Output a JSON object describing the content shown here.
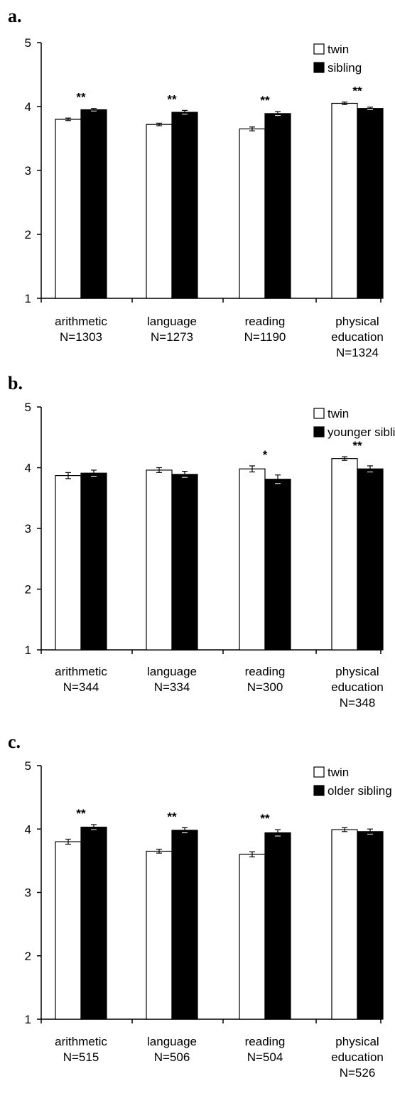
{
  "chart_data": [
    {
      "panel_label": "a.",
      "type": "bar",
      "categories": [
        "arithmetic",
        "language",
        "reading",
        "physical education"
      ],
      "category_labels": [
        [
          "arithmetic",
          "N=1303"
        ],
        [
          "language",
          "N=1273"
        ],
        [
          "reading",
          "N=1190"
        ],
        [
          "physical",
          "education",
          "N=1324"
        ]
      ],
      "series": [
        {
          "name": "twin",
          "color": "#ffffff",
          "values": [
            3.8,
            3.72,
            3.65,
            4.05
          ],
          "errors": [
            0.02,
            0.02,
            0.03,
            0.02
          ]
        },
        {
          "name": "sibling",
          "color": "#000000",
          "values": [
            3.95,
            3.91,
            3.89,
            3.97
          ],
          "errors": [
            0.02,
            0.03,
            0.03,
            0.02
          ]
        }
      ],
      "significance": [
        "**",
        "**",
        "**",
        "**"
      ],
      "yticks": [
        "1",
        "2",
        "3",
        "4",
        "5"
      ],
      "ylim": [
        1,
        5
      ],
      "legend_position": "top-right",
      "grid": false
    },
    {
      "panel_label": "b.",
      "type": "bar",
      "categories": [
        "arithmetic",
        "language",
        "reading",
        "physical education"
      ],
      "category_labels": [
        [
          "arithmetic",
          "N=344"
        ],
        [
          "language",
          "N=334"
        ],
        [
          "reading",
          "N=300"
        ],
        [
          "physical",
          "education",
          "N=348"
        ]
      ],
      "series": [
        {
          "name": "twin",
          "color": "#ffffff",
          "values": [
            3.87,
            3.96,
            3.98,
            4.15
          ],
          "errors": [
            0.05,
            0.04,
            0.05,
            0.03
          ]
        },
        {
          "name": "younger sibling",
          "color": "#000000",
          "values": [
            3.91,
            3.89,
            3.81,
            3.98
          ],
          "errors": [
            0.05,
            0.05,
            0.07,
            0.05
          ]
        }
      ],
      "significance": [
        "",
        "",
        "*",
        "**"
      ],
      "yticks": [
        "1",
        "2",
        "3",
        "4",
        "5"
      ],
      "ylim": [
        1,
        5
      ],
      "legend_position": "top-right",
      "grid": false
    },
    {
      "panel_label": "c.",
      "type": "bar",
      "categories": [
        "arithmetic",
        "language",
        "reading",
        "physical education"
      ],
      "category_labels": [
        [
          "arithmetic",
          "N=515"
        ],
        [
          "language",
          "N=506"
        ],
        [
          "reading",
          "N=504"
        ],
        [
          "physical",
          "education",
          "N=526"
        ]
      ],
      "series": [
        {
          "name": "twin",
          "color": "#ffffff",
          "values": [
            3.8,
            3.65,
            3.6,
            3.99
          ],
          "errors": [
            0.04,
            0.03,
            0.04,
            0.03
          ]
        },
        {
          "name": "older sibling",
          "color": "#000000",
          "values": [
            4.03,
            3.98,
            3.94,
            3.96
          ],
          "errors": [
            0.04,
            0.04,
            0.05,
            0.04
          ]
        }
      ],
      "significance": [
        "**",
        "**",
        "**",
        ""
      ],
      "yticks": [
        "1",
        "2",
        "3",
        "4",
        "5"
      ],
      "ylim": [
        1,
        5
      ],
      "legend_position": "top-right",
      "grid": false
    }
  ]
}
